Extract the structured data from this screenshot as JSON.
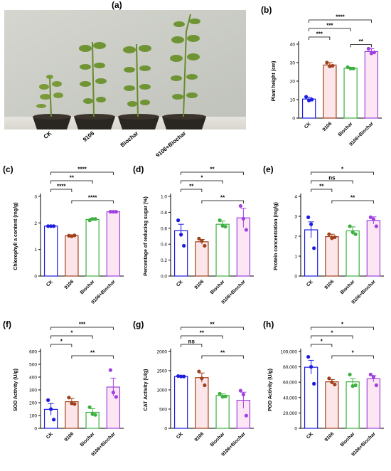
{
  "colors": {
    "CK": "#1c1ce0",
    "9106": "#a0401a",
    "Biochar": "#3cb040",
    "9106+Biochar": "#a040e0",
    "fill_CK": "#ffffff",
    "fill_9106": "#fde6ea",
    "fill_Biochar": "#ffffff",
    "fill_9106+Biochar": "#fde6f4"
  },
  "photo": {
    "label": "(a)",
    "captions": [
      "CK",
      "9106",
      "Biochar",
      "9106+Biochar"
    ]
  },
  "chart_data": [
    {
      "id": "b",
      "label": "(b)",
      "type": "bar",
      "categories": [
        "CK",
        "9106",
        "Biochar",
        "9106+Biochar"
      ],
      "values": [
        10.3,
        28.7,
        27.0,
        36.0
      ],
      "errors": [
        1.0,
        1.3,
        0.5,
        1.5
      ],
      "points": [
        [
          11.5,
          9.5,
          10.0
        ],
        [
          30.0,
          28.0,
          28.3
        ],
        [
          27.5,
          26.8,
          26.8
        ],
        [
          37.5,
          35.0,
          35.5
        ]
      ],
      "ylabel": "Plant height (cm)",
      "ylim": [
        0,
        40
      ],
      "yticks": [
        0,
        10,
        20,
        30,
        40
      ],
      "ytick_labels": [
        "0",
        "10",
        "20",
        "30",
        "40"
      ],
      "significance": [
        {
          "from": 0,
          "to": 3,
          "text": "****"
        },
        {
          "from": 0,
          "to": 2,
          "text": "***"
        },
        {
          "from": 0,
          "to": 1,
          "text": "***"
        },
        {
          "from": 2,
          "to": 3,
          "text": "**"
        }
      ]
    },
    {
      "id": "c",
      "label": "(c)",
      "type": "bar",
      "categories": [
        "CK",
        "9106",
        "Biochar",
        "9106+Biochar"
      ],
      "values": [
        1.88,
        1.52,
        2.13,
        2.42
      ],
      "errors": [
        0.02,
        0.03,
        0.05,
        0.03
      ],
      "points": [
        [
          1.88,
          1.88,
          1.88
        ],
        [
          1.52,
          1.5,
          1.53
        ],
        [
          2.1,
          2.15,
          2.15
        ],
        [
          2.42,
          2.42,
          2.42
        ]
      ],
      "ylabel": "Chlorophyll a content (mg/g)",
      "ylim": [
        0,
        3
      ],
      "yticks": [
        0,
        1,
        2,
        3
      ],
      "ytick_labels": [
        "0",
        "1",
        "2",
        "3"
      ],
      "significance": [
        {
          "from": 0,
          "to": 3,
          "text": "****"
        },
        {
          "from": 0,
          "to": 2,
          "text": "**"
        },
        {
          "from": 0,
          "to": 1,
          "text": "****"
        },
        {
          "from": 1,
          "to": 3,
          "text": "****"
        }
      ]
    },
    {
      "id": "d",
      "label": "(d)",
      "type": "bar",
      "categories": [
        "CK",
        "9106",
        "Biochar",
        "9106+Biochar"
      ],
      "values": [
        0.57,
        0.43,
        0.65,
        0.73
      ],
      "errors": [
        0.08,
        0.03,
        0.04,
        0.12
      ],
      "points": [
        [
          0.7,
          0.52,
          0.38
        ],
        [
          0.47,
          0.44,
          0.38
        ],
        [
          0.7,
          0.63,
          0.62
        ],
        [
          0.88,
          0.72,
          0.58
        ]
      ],
      "ylabel": "Percentage of reducing sugar (%)",
      "ylim": [
        0,
        1.0
      ],
      "yticks": [
        0,
        0.2,
        0.4,
        0.6,
        0.8,
        1.0
      ],
      "ytick_labels": [
        "0.0",
        "0.2",
        "0.4",
        "0.6",
        "0.8",
        "1.0"
      ],
      "significance": [
        {
          "from": 0,
          "to": 3,
          "text": "**"
        },
        {
          "from": 0,
          "to": 2,
          "text": "*"
        },
        {
          "from": 0,
          "to": 1,
          "text": "**"
        },
        {
          "from": 1,
          "to": 3,
          "text": "**"
        }
      ]
    },
    {
      "id": "e",
      "label": "(e)",
      "type": "bar",
      "categories": [
        "CK",
        "9106",
        "Biochar",
        "9106+Biochar"
      ],
      "values": [
        2.32,
        1.98,
        2.27,
        2.79
      ],
      "errors": [
        0.4,
        0.12,
        0.2,
        0.18
      ],
      "points": [
        [
          2.95,
          2.6,
          1.4
        ],
        [
          2.1,
          1.9,
          1.95
        ],
        [
          2.5,
          2.2,
          2.1
        ],
        [
          2.95,
          2.85,
          2.5
        ]
      ],
      "ylabel": "Protein concentration (mg/g)",
      "ylim": [
        0,
        4
      ],
      "yticks": [
        0,
        1,
        2,
        3,
        4
      ],
      "ytick_labels": [
        "0",
        "1",
        "2",
        "3",
        "4"
      ],
      "significance": [
        {
          "from": 0,
          "to": 3,
          "text": "*"
        },
        {
          "from": 0,
          "to": 2,
          "text": "ns"
        },
        {
          "from": 0,
          "to": 1,
          "text": "**"
        },
        {
          "from": 1,
          "to": 3,
          "text": "**"
        }
      ]
    },
    {
      "id": "f",
      "label": "(f)",
      "type": "bar",
      "categories": [
        "CK",
        "9106",
        "Biochar",
        "9106+Biochar"
      ],
      "values": [
        148,
        208,
        125,
        322
      ],
      "errors": [
        45,
        25,
        28,
        70
      ],
      "points": [
        [
          220,
          150,
          68
        ],
        [
          240,
          195,
          190
        ],
        [
          165,
          110,
          105
        ],
        [
          455,
          280,
          245
        ]
      ],
      "ylabel": "SOD Activity (U/g)",
      "ylim": [
        0,
        600
      ],
      "yticks": [
        0,
        100,
        200,
        300,
        400,
        500,
        600
      ],
      "ytick_labels": [
        "0",
        "100",
        "200",
        "300",
        "400",
        "500",
        "600"
      ],
      "significance": [
        {
          "from": 0,
          "to": 3,
          "text": "***"
        },
        {
          "from": 0,
          "to": 2,
          "text": "*"
        },
        {
          "from": 0,
          "to": 1,
          "text": "*"
        },
        {
          "from": 1,
          "to": 3,
          "text": "**"
        }
      ]
    },
    {
      "id": "g",
      "label": "(g)",
      "type": "bar",
      "categories": [
        "CK",
        "9106",
        "Biochar",
        "9106+Biochar"
      ],
      "values": [
        1350,
        1320,
        855,
        730
      ],
      "errors": [
        20,
        120,
        40,
        210
      ],
      "points": [
        [
          1360,
          1350,
          1350
        ],
        [
          1480,
          1300,
          1120
        ],
        [
          900,
          820,
          830
        ],
        [
          980,
          880,
          330
        ]
      ],
      "ylabel": "CAT Activity (U/g)",
      "ylim": [
        0,
        2000
      ],
      "yticks": [
        0,
        500,
        1000,
        1500,
        2000
      ],
      "ytick_labels": [
        "0",
        "500",
        "1000",
        "1500",
        "2000"
      ],
      "significance": [
        {
          "from": 0,
          "to": 3,
          "text": "**"
        },
        {
          "from": 0,
          "to": 2,
          "text": "**"
        },
        {
          "from": 0,
          "to": 1,
          "text": "ns"
        },
        {
          "from": 1,
          "to": 3,
          "text": "**"
        }
      ]
    },
    {
      "id": "h",
      "label": "(h)",
      "type": "bar",
      "categories": [
        "CK",
        "9106",
        "Biochar",
        "9106+Biochar"
      ],
      "values": [
        79500,
        60500,
        60500,
        64500
      ],
      "errors": [
        9000,
        3000,
        4000,
        4000
      ],
      "points": [
        [
          93000,
          80000,
          58000
        ],
        [
          65000,
          60000,
          57000
        ],
        [
          70000,
          55000,
          56000
        ],
        [
          70000,
          67000,
          56000
        ]
      ],
      "ylabel": "POD Activity (U/g)",
      "ylim": [
        0,
        100000
      ],
      "yticks": [
        0,
        20000,
        40000,
        60000,
        80000,
        100000
      ],
      "ytick_labels": [
        "0",
        "20,000",
        "40,000",
        "60,000",
        "80,000",
        "100,000"
      ],
      "significance": [
        {
          "from": 0,
          "to": 3,
          "text": "*"
        },
        {
          "from": 0,
          "to": 2,
          "text": "*"
        },
        {
          "from": 0,
          "to": 1,
          "text": "*"
        },
        {
          "from": 1,
          "to": 3,
          "text": "*"
        }
      ]
    }
  ]
}
